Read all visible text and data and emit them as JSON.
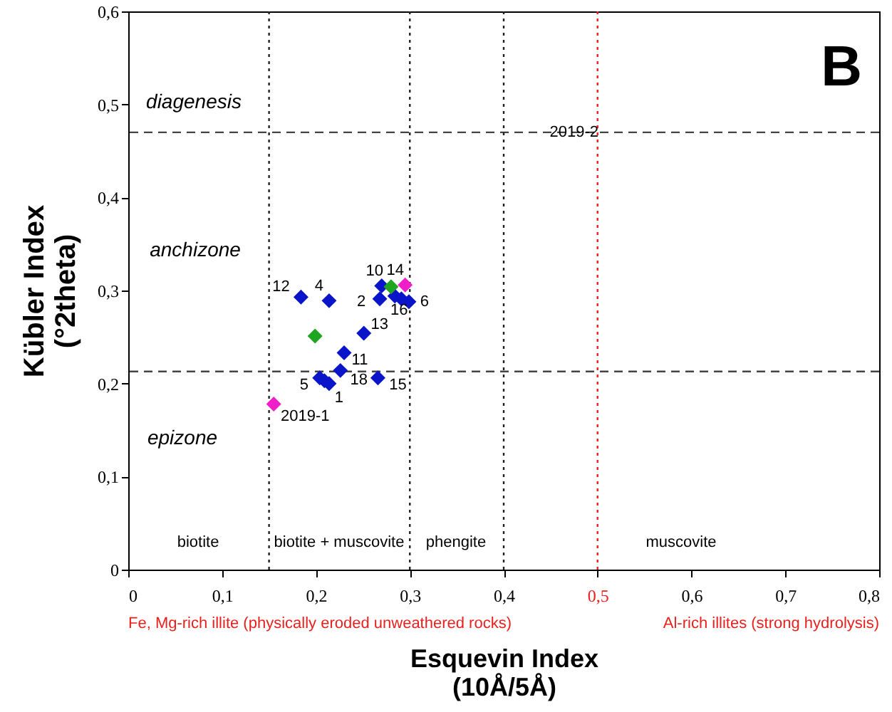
{
  "chart_data": {
    "type": "scatter",
    "xlabel": "Esquevin Index\n(10Å/5Å)",
    "ylabel": "Kübler Index\n(°2theta)",
    "xlim": [
      0,
      0.8
    ],
    "ylim": [
      0,
      0.6
    ],
    "xticks": [
      {
        "value": 0,
        "label": "0"
      },
      {
        "value": 0.1,
        "label": "0,1"
      },
      {
        "value": 0.2,
        "label": "0,2"
      },
      {
        "value": 0.3,
        "label": "0,3"
      },
      {
        "value": 0.4,
        "label": "0,4"
      },
      {
        "value": 0.5,
        "label": "0,5"
      },
      {
        "value": 0.6,
        "label": "0,6"
      },
      {
        "value": 0.7,
        "label": "0,7"
      },
      {
        "value": 0.8,
        "label": "0,8"
      }
    ],
    "yticks": [
      {
        "value": 0,
        "label": "0"
      },
      {
        "value": 0.1,
        "label": "0,1"
      },
      {
        "value": 0.2,
        "label": "0,2"
      },
      {
        "value": 0.3,
        "label": "0,3"
      },
      {
        "value": 0.4,
        "label": "0,4"
      },
      {
        "value": 0.5,
        "label": "0,5"
      },
      {
        "value": 0.6,
        "label": "0,6"
      }
    ],
    "marker": "diamond",
    "grid": false,
    "series": [
      {
        "color": "#0a14c8",
        "x": [
          0.184,
          0.214,
          0.268,
          0.27,
          0.284,
          0.291,
          0.299,
          0.251,
          0.23,
          0.226,
          0.204,
          0.209,
          0.214,
          0.266
        ],
        "values": [
          0.293,
          0.289,
          0.291,
          0.305,
          0.294,
          0.291,
          0.288,
          0.254,
          0.233,
          0.214,
          0.206,
          0.203,
          0.2,
          0.206
        ]
      },
      {
        "color": "#1fa51f",
        "x": [
          0.28,
          0.199
        ],
        "values": [
          0.304,
          0.251
        ]
      },
      {
        "color": "#f01ec8",
        "x": [
          0.295,
          0.155
        ],
        "values": [
          0.306,
          0.178
        ]
      }
    ],
    "ref_lines": [
      {
        "axis": "y",
        "value": 0.47,
        "color": "#444444",
        "line_style": "dashed"
      },
      {
        "axis": "y",
        "value": 0.213,
        "color": "#444444",
        "line_style": "dashed"
      },
      {
        "axis": "x",
        "value": 0.15,
        "color": "#222222",
        "line_style": "dotted"
      },
      {
        "axis": "x",
        "value": 0.3,
        "color": "#222222",
        "line_style": "dotted"
      },
      {
        "axis": "x",
        "value": 0.4,
        "color": "#222222",
        "line_style": "dotted"
      },
      {
        "axis": "x",
        "value": 0.5,
        "color": "#e8201e",
        "line_style": "dotted"
      }
    ],
    "annotations": [
      "B",
      "Fe, Mg-rich illite (physically eroded unweathered rocks)",
      "Al-rich illites (strong hydrolysis)",
      "diagenesis",
      "anchizone",
      "epizone",
      "biotite",
      "biotite + muscovite",
      "phengite",
      "muscovite",
      {
        "text": "12",
        "x": 0.184,
        "y": 0.293
      },
      {
        "text": "4",
        "x": 0.214,
        "y": 0.289
      },
      {
        "text": "10",
        "x": 0.27,
        "y": 0.305
      },
      {
        "text": "14",
        "x": 0.295,
        "y": 0.306
      },
      {
        "text": "2",
        "x": 0.268,
        "y": 0.291
      },
      {
        "text": "16",
        "x": 0.284,
        "y": 0.294
      },
      {
        "text": "6",
        "x": 0.299,
        "y": 0.288
      },
      {
        "text": "13",
        "x": 0.251,
        "y": 0.254
      },
      {
        "text": "11",
        "x": 0.23,
        "y": 0.233
      },
      {
        "text": "18",
        "x": 0.226,
        "y": 0.214
      },
      {
        "text": "5",
        "x": 0.204,
        "y": 0.206
      },
      {
        "text": "1",
        "x": 0.214,
        "y": 0.2
      },
      {
        "text": "15",
        "x": 0.266,
        "y": 0.206
      },
      {
        "text": "2019-1",
        "x": 0.155,
        "y": 0.178
      },
      {
        "text": "2019-2",
        "x": 0.475,
        "y": 0.47
      }
    ]
  }
}
